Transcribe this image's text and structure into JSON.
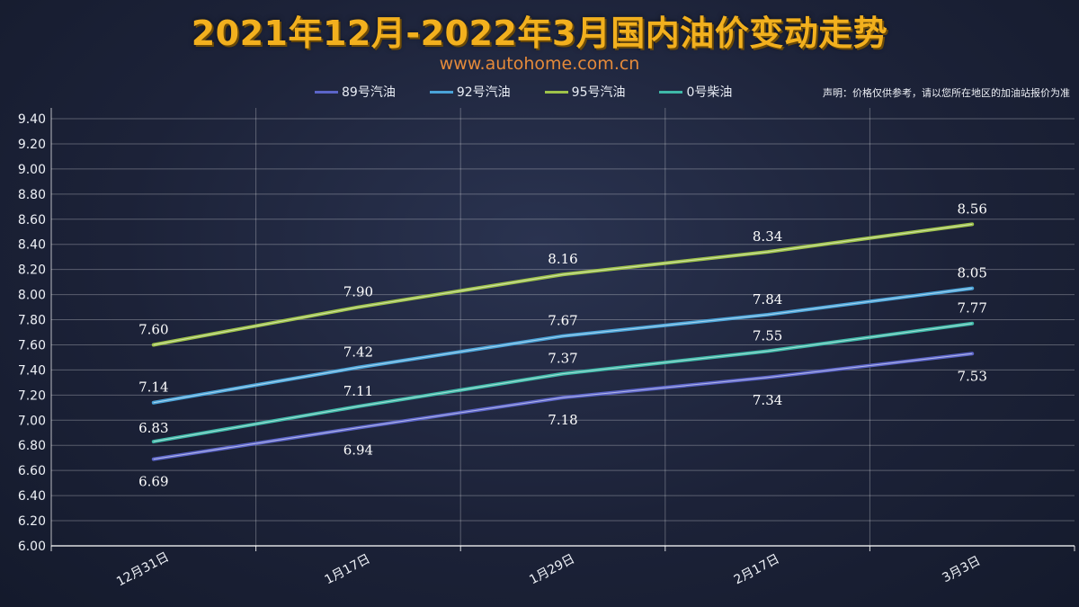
{
  "title": "2021年12月-2022年3月国内油价变动走势",
  "website": "www.autohome.com.cn",
  "disclaimer": "声明：价格仅供参考，请以您所在地区的加油站报价为准",
  "chart_data": {
    "type": "line",
    "categories": [
      "12月31日",
      "1月17日",
      "1月29日",
      "2月17日",
      "3月3日"
    ],
    "series": [
      {
        "name": "89号汽油",
        "color": "#5b64c8",
        "values": [
          6.69,
          6.94,
          7.18,
          7.34,
          7.53
        ]
      },
      {
        "name": "92号汽油",
        "color": "#4aa3d8",
        "values": [
          7.14,
          7.42,
          7.67,
          7.84,
          8.05
        ]
      },
      {
        "name": "95号汽油",
        "color": "#9ec24a",
        "values": [
          7.6,
          7.9,
          8.16,
          8.34,
          8.56
        ]
      },
      {
        "name": "0号柴油",
        "color": "#3fb8a8",
        "values": [
          6.83,
          7.11,
          7.37,
          7.55,
          7.77
        ]
      }
    ],
    "ylim": [
      6.0,
      9.4
    ],
    "yticks": [
      "6.00",
      "6.20",
      "6.40",
      "6.60",
      "6.80",
      "7.00",
      "7.20",
      "7.40",
      "7.60",
      "7.80",
      "8.00",
      "8.20",
      "8.40",
      "8.60",
      "8.80",
      "9.00",
      "9.20",
      "9.40"
    ],
    "grid": true,
    "legend_position": "top"
  }
}
